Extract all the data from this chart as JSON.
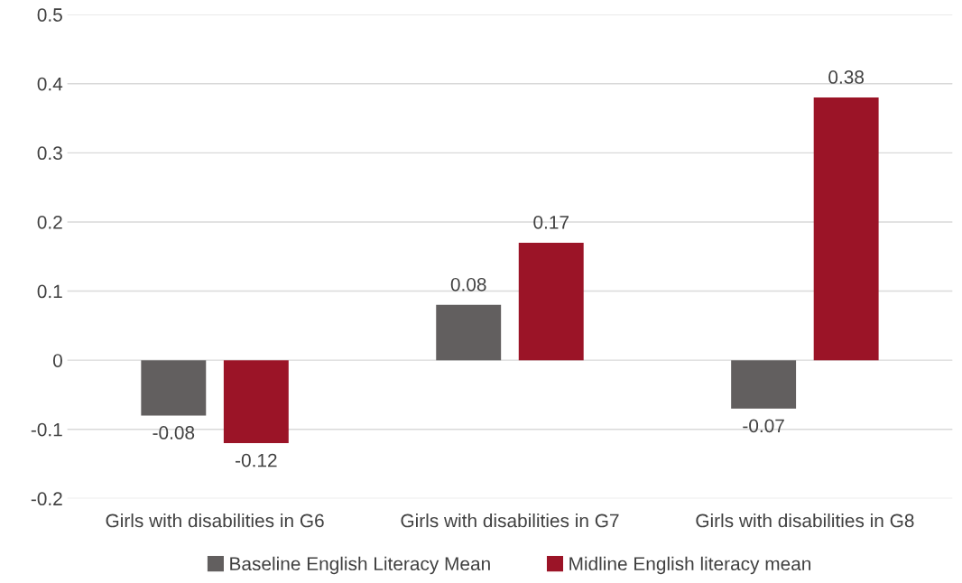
{
  "chart_data": {
    "type": "bar",
    "categories": [
      "Girls with disabilities in G6",
      "Girls with disabilities in G7",
      "Girls with disabilities in G8"
    ],
    "series": [
      {
        "name": "Baseline English Literacy Mean",
        "color": "#625f5f",
        "values": [
          -0.08,
          0.08,
          -0.07
        ]
      },
      {
        "name": "Midline English literacy mean",
        "color": "#9b1427",
        "values": [
          -0.12,
          0.17,
          0.38
        ]
      }
    ],
    "ylim": [
      -0.2,
      0.5
    ],
    "yticks": [
      -0.2,
      -0.1,
      0,
      0.1,
      0.2,
      0.3,
      0.4,
      0.5
    ],
    "grid": "y",
    "legend": "bottom",
    "data_labels": true
  }
}
